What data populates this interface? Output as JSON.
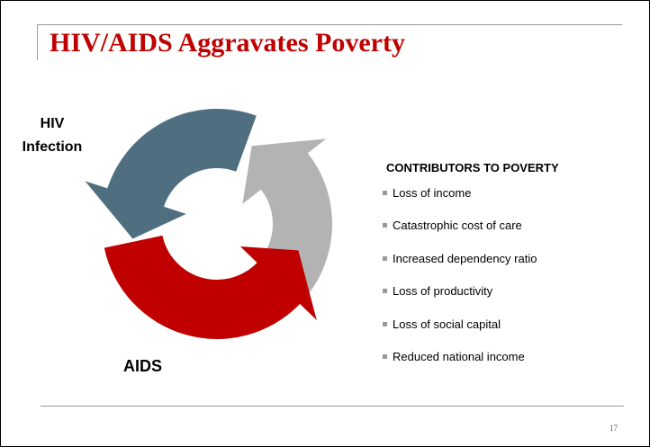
{
  "title": "HIV/AIDS Aggravates Poverty",
  "cycle": {
    "top_label": "HIV Infection",
    "bottom_label": "AIDS"
  },
  "list": {
    "heading": "CONTRIBUTORS TO POVERTY",
    "items": [
      "Loss of income",
      "Catastrophic cost of care",
      "Increased dependency ratio",
      "Loss of productivity",
      "Loss of social capital",
      "Reduced national income"
    ]
  },
  "page_number": "17"
}
